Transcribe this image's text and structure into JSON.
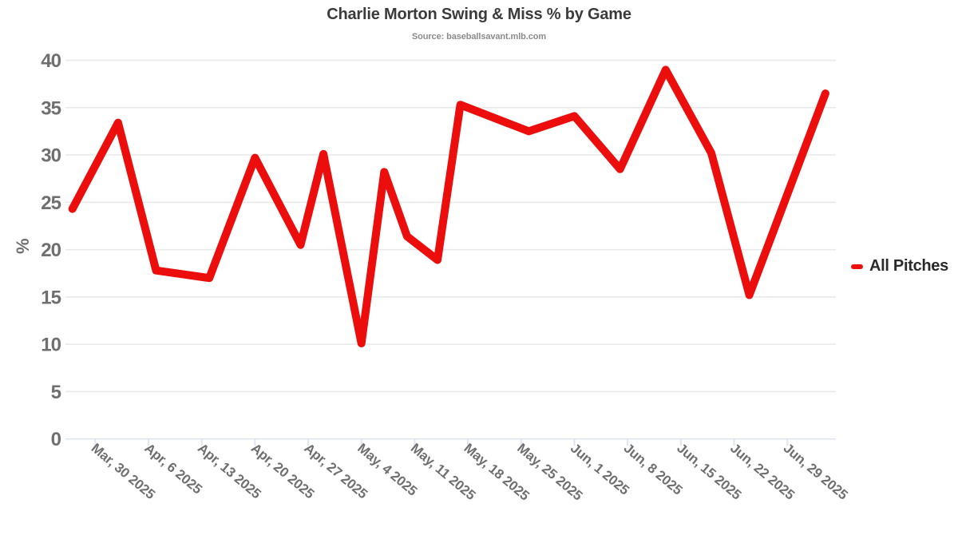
{
  "chart_data": {
    "type": "line",
    "title": "Charlie Morton Swing & Miss % by Game",
    "subtitle": "Source: baseballsavant.mlb.com",
    "xlabel": "",
    "ylabel": "%",
    "ylim": [
      0,
      40
    ],
    "y_ticks": [
      0,
      5,
      10,
      15,
      20,
      25,
      30,
      35,
      40
    ],
    "grid": "horizontal",
    "legend_position": "right",
    "x_tick_labels": [
      "Mar, 30 2025",
      "Apr, 6 2025",
      "Apr, 13 2025",
      "Apr, 20 2025",
      "Apr, 27 2025",
      "May, 4 2025",
      "May, 11 2025",
      "May, 18 2025",
      "May, 25 2025",
      "Jun, 1 2025",
      "Jun, 8 2025",
      "Jun, 15 2025",
      "Jun, 22 2025",
      "Jun, 29 2025"
    ],
    "x_tick_dates": [
      "2025-03-30",
      "2025-04-06",
      "2025-04-13",
      "2025-04-20",
      "2025-04-27",
      "2025-05-04",
      "2025-05-11",
      "2025-05-18",
      "2025-05-25",
      "2025-06-01",
      "2025-06-08",
      "2025-06-15",
      "2025-06-22",
      "2025-06-29"
    ],
    "series": [
      {
        "name": "All Pitches",
        "color": "#ec0d0d",
        "points": [
          {
            "date": "2025-03-27",
            "value": 24.3
          },
          {
            "date": "2025-04-02",
            "value": 33.4
          },
          {
            "date": "2025-04-07",
            "value": 17.8
          },
          {
            "date": "2025-04-14",
            "value": 17.0
          },
          {
            "date": "2025-04-20",
            "value": 29.7
          },
          {
            "date": "2025-04-26",
            "value": 20.5
          },
          {
            "date": "2025-04-29",
            "value": 30.1
          },
          {
            "date": "2025-05-04",
            "value": 10.1
          },
          {
            "date": "2025-05-07",
            "value": 28.2
          },
          {
            "date": "2025-05-10",
            "value": 21.4
          },
          {
            "date": "2025-05-14",
            "value": 18.9
          },
          {
            "date": "2025-05-17",
            "value": 35.3
          },
          {
            "date": "2025-05-26",
            "value": 32.5
          },
          {
            "date": "2025-06-01",
            "value": 34.1
          },
          {
            "date": "2025-06-07",
            "value": 28.5
          },
          {
            "date": "2025-06-13",
            "value": 39.0
          },
          {
            "date": "2025-06-19",
            "value": 30.2
          },
          {
            "date": "2025-06-24",
            "value": 15.2
          },
          {
            "date": "2025-07-04",
            "value": 36.5
          }
        ]
      }
    ]
  }
}
